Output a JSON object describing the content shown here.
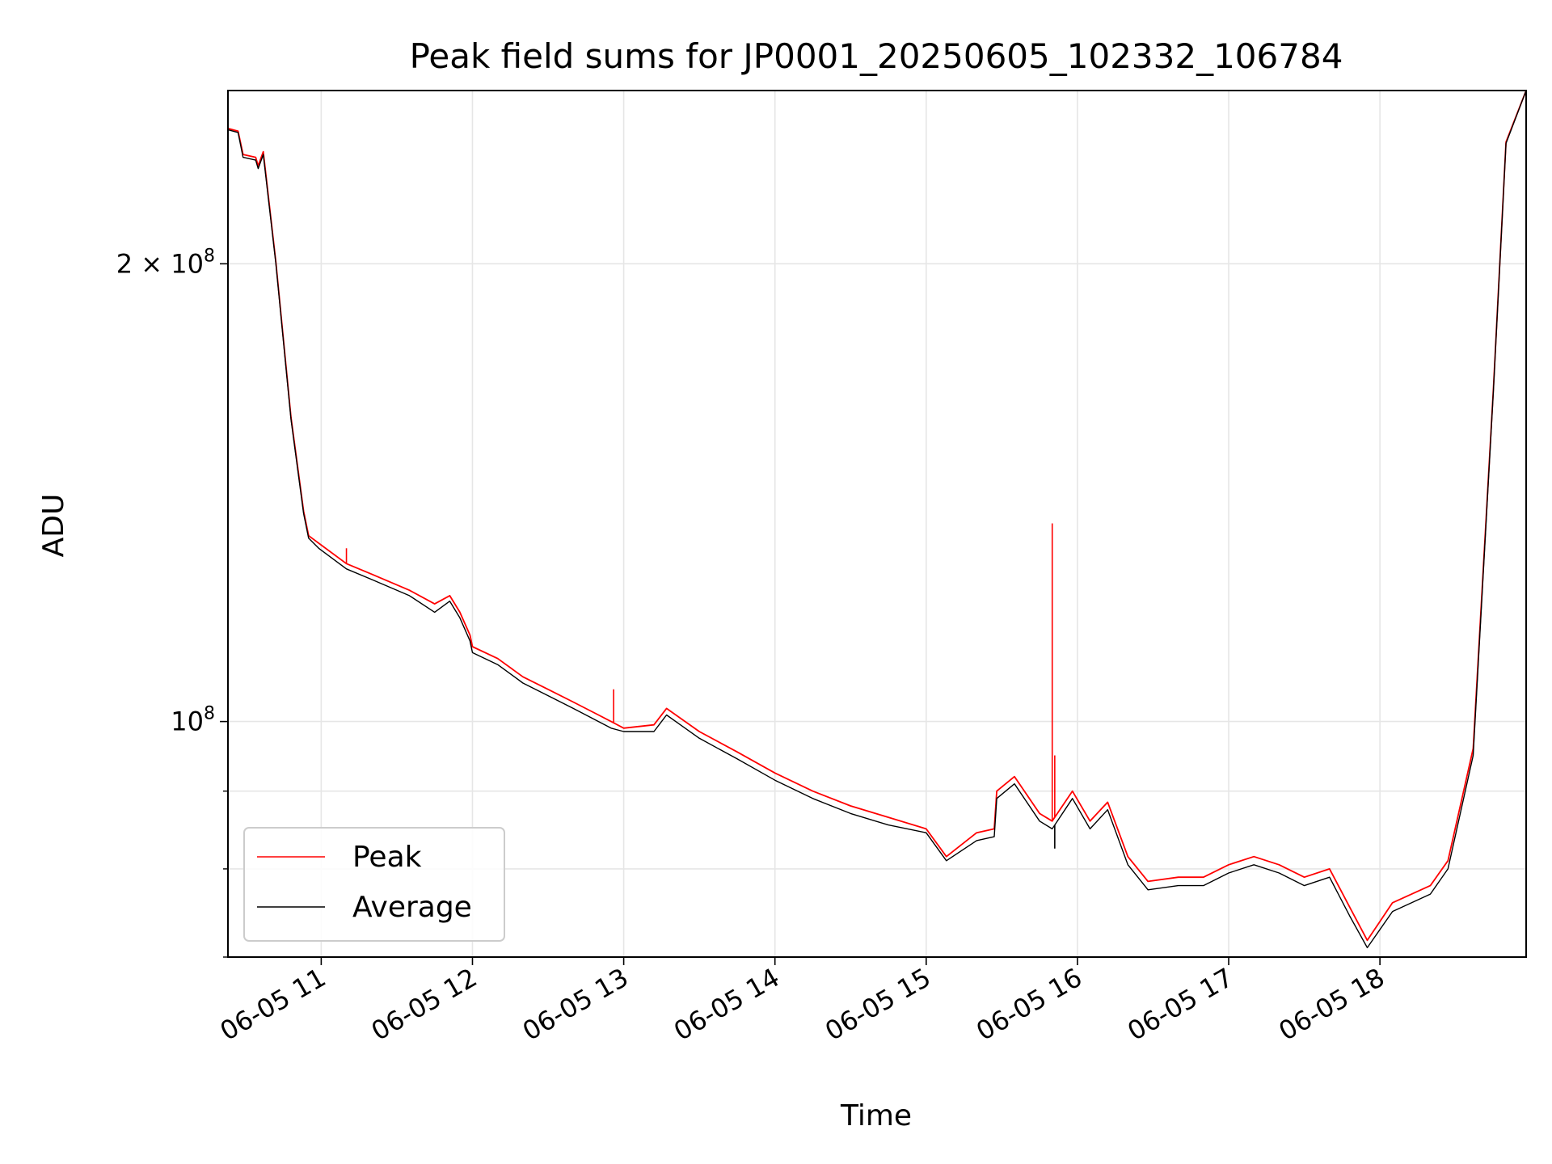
{
  "chart_data": {
    "type": "line",
    "title": "Peak field sums for JP0001_20250605_102332_106784",
    "xlabel": "Time",
    "ylabel": "ADU",
    "xlim": [
      "06-05 10:23",
      "06-05 18:58"
    ],
    "ylim": [
      70000000,
      260000000
    ],
    "yscale": "log",
    "grid": true,
    "legend_position": "lower left",
    "x_ticks": [
      "06-05 11",
      "06-05 12",
      "06-05 13",
      "06-05 14",
      "06-05 15",
      "06-05 16",
      "06-05 17",
      "06-05 18"
    ],
    "y_ticks": [
      {
        "value": 100000000,
        "label_base": "10",
        "label_exp": "8"
      },
      {
        "value": 200000000,
        "label_base": "2 × 10",
        "label_exp": "8"
      }
    ],
    "y_minor_ticks": [
      70000000,
      80000000,
      90000000
    ],
    "series": [
      {
        "name": "Peak",
        "color": "#ff0000"
      },
      {
        "name": "Average",
        "color": "#000000"
      }
    ],
    "points": {
      "time": [
        "10:23",
        "10:27",
        "10:29",
        "10:34",
        "10:35",
        "10:37",
        "10:42",
        "10:48",
        "10:53",
        "10:55",
        "10:59",
        "11:10",
        "11:20",
        "11:35",
        "11:45",
        "11:51",
        "11:55",
        "11:59",
        "12:00",
        "12:10",
        "12:20",
        "12:30",
        "12:40",
        "12:50",
        "12:55",
        "13:00",
        "13:12",
        "13:17",
        "13:30",
        "13:45",
        "14:00",
        "14:15",
        "14:30",
        "14:45",
        "15:00",
        "15:08",
        "15:20",
        "15:27",
        "15:28",
        "15:35",
        "15:45",
        "15:50",
        "15:58",
        "16:05",
        "16:12",
        "16:20",
        "16:28",
        "16:40",
        "16:50",
        "17:00",
        "17:10",
        "17:20",
        "17:30",
        "17:40",
        "17:48",
        "17:55",
        "18:05",
        "18:20",
        "18:27",
        "18:37",
        "18:45",
        "18:50",
        "18:58"
      ],
      "average": [
        245000000,
        244000000,
        235000000,
        234000000,
        231000000,
        236000000,
        200000000,
        158000000,
        137000000,
        132000000,
        130000000,
        126000000,
        124000000,
        121000000,
        118000000,
        120000000,
        117000000,
        113000000,
        111000000,
        109000000,
        106000000,
        104000000,
        102000000,
        100000000,
        99000000,
        98500000,
        98500000,
        101000000,
        97500000,
        94500000,
        91500000,
        89000000,
        87000000,
        85500000,
        84500000,
        81000000,
        83500000,
        84000000,
        89000000,
        91000000,
        86000000,
        85000000,
        89000000,
        85000000,
        87500000,
        80500000,
        77500000,
        78000000,
        78000000,
        79500000,
        80500000,
        79500000,
        78000000,
        79000000,
        74500000,
        71000000,
        75000000,
        77000000,
        80000000,
        95000000,
        165000000,
        240000000,
        260000000
      ],
      "peak": [
        245500000,
        244500000,
        236000000,
        235000000,
        232000000,
        237000000,
        200500000,
        158500000,
        137500000,
        132500000,
        131000000,
        127000000,
        125000000,
        122000000,
        119500000,
        121000000,
        118000000,
        114000000,
        112000000,
        110000000,
        107000000,
        105000000,
        103000000,
        101000000,
        100000000,
        99000000,
        99500000,
        102000000,
        98500000,
        95500000,
        92500000,
        90000000,
        88000000,
        86500000,
        85000000,
        81500000,
        84500000,
        85000000,
        90000000,
        92000000,
        87000000,
        86000000,
        90000000,
        86000000,
        88500000,
        81500000,
        78500000,
        79000000,
        79000000,
        80500000,
        81500000,
        80500000,
        79000000,
        80000000,
        75500000,
        71800000,
        76000000,
        78000000,
        81000000,
        96000000,
        165500000,
        240500000,
        260000000
      ]
    },
    "spikes": [
      {
        "series": "Peak",
        "time": "11:10",
        "value": 130000000
      },
      {
        "series": "Peak",
        "time": "12:56",
        "value": 105000000
      },
      {
        "series": "Peak",
        "time": "15:50",
        "value": 135000000
      },
      {
        "series": "Peak",
        "time": "15:51",
        "value": 95000000
      },
      {
        "series": "Average",
        "time": "15:51",
        "value": 82500000
      }
    ]
  }
}
